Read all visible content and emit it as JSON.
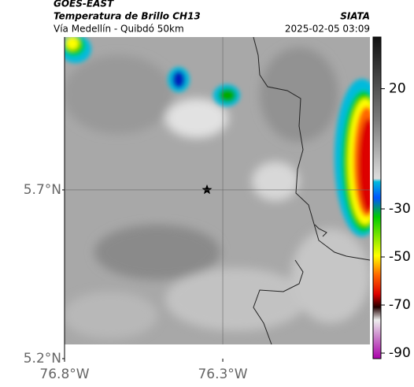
{
  "header": {
    "title": "GOES-EAST",
    "product": "Temperatura de Brillo CH13",
    "region": "Vía Medellín - Quibdó 50km",
    "source": "SIATA",
    "timestamp": "2025-02-05 03:09"
  },
  "map": {
    "lonlim": [
      -76.8,
      -75.835
    ],
    "latlim": [
      5.2,
      6.153
    ],
    "lonticks": [
      {
        "value": -76.8,
        "label": "76.8°W"
      },
      {
        "value": -76.3,
        "label": "76.3°W"
      }
    ],
    "latticks": [
      {
        "value": 5.2,
        "label": "5.2°N"
      },
      {
        "value": 5.7,
        "label": "5.7°N"
      }
    ]
  },
  "colorbar": {
    "lim": [
      -92.3,
      41.5
    ],
    "ticks": [
      20,
      -30,
      -50,
      -70,
      -90
    ]
  }
}
